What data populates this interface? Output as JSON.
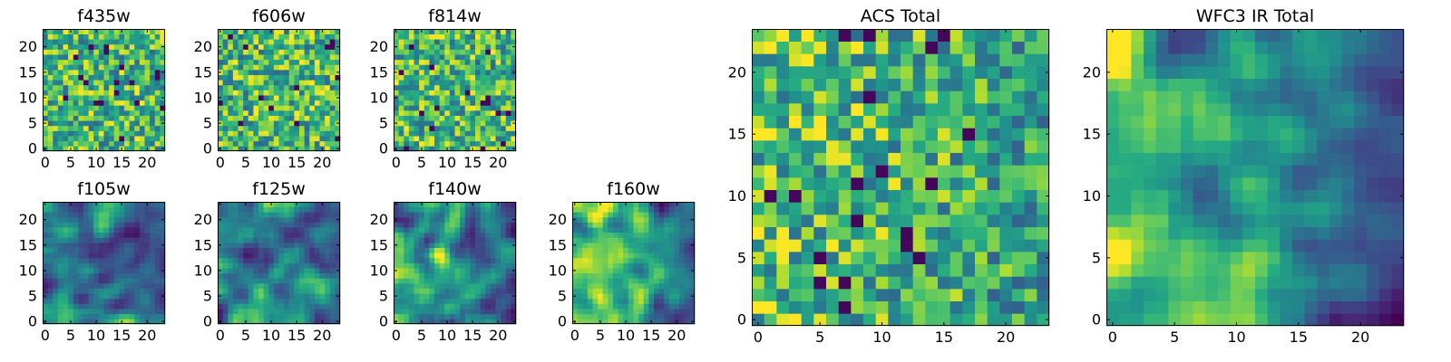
{
  "chart_data": [
    {
      "id": "f435w",
      "type": "heatmap",
      "title": "f435w",
      "rows": 24,
      "cols": 24,
      "xticks": [
        0,
        5,
        10,
        15,
        20
      ],
      "yticks": [
        0,
        5,
        10,
        15,
        20
      ],
      "xlim": [
        -0.5,
        23.5
      ],
      "ylim": [
        -0.5,
        23.5
      ],
      "texture": "noise",
      "edge_fade": 0.0,
      "colormap": "viridis",
      "grid": false
    },
    {
      "id": "f606w",
      "type": "heatmap",
      "title": "f606w",
      "rows": 24,
      "cols": 24,
      "xticks": [
        0,
        5,
        10,
        15,
        20
      ],
      "yticks": [
        0,
        5,
        10,
        15,
        20
      ],
      "xlim": [
        -0.5,
        23.5
      ],
      "ylim": [
        -0.5,
        23.5
      ],
      "texture": "noise",
      "edge_fade": 0.0,
      "colormap": "viridis",
      "grid": false
    },
    {
      "id": "f814w",
      "type": "heatmap",
      "title": "f814w",
      "rows": 24,
      "cols": 24,
      "xticks": [
        0,
        5,
        10,
        15,
        20
      ],
      "yticks": [
        0,
        5,
        10,
        15,
        20
      ],
      "xlim": [
        -0.5,
        23.5
      ],
      "ylim": [
        -0.5,
        23.5
      ],
      "texture": "noise",
      "edge_fade": 0.0,
      "colormap": "viridis",
      "grid": false
    },
    {
      "id": "f105w",
      "type": "heatmap",
      "title": "f105w",
      "rows": 24,
      "cols": 24,
      "xticks": [
        0,
        5,
        10,
        15,
        20
      ],
      "yticks": [
        0,
        5,
        10,
        15,
        20
      ],
      "xlim": [
        -0.5,
        23.5
      ],
      "ylim": [
        -0.5,
        23.5
      ],
      "texture": "smooth",
      "edge_fade": 0.35,
      "colormap": "viridis",
      "grid": false
    },
    {
      "id": "f125w",
      "type": "heatmap",
      "title": "f125w",
      "rows": 24,
      "cols": 24,
      "xticks": [
        0,
        5,
        10,
        15,
        20
      ],
      "yticks": [
        0,
        5,
        10,
        15,
        20
      ],
      "xlim": [
        -0.5,
        23.5
      ],
      "ylim": [
        -0.5,
        23.5
      ],
      "texture": "smooth",
      "edge_fade": 0.35,
      "colormap": "viridis",
      "grid": false
    },
    {
      "id": "f140w",
      "type": "heatmap",
      "title": "f140w",
      "rows": 24,
      "cols": 24,
      "xticks": [
        0,
        5,
        10,
        15,
        20
      ],
      "yticks": [
        0,
        5,
        10,
        15,
        20
      ],
      "xlim": [
        -0.5,
        23.5
      ],
      "ylim": [
        -0.5,
        23.5
      ],
      "texture": "smooth",
      "edge_fade": 0.4,
      "colormap": "viridis",
      "grid": false
    },
    {
      "id": "f160w",
      "type": "heatmap",
      "title": "f160w",
      "rows": 24,
      "cols": 24,
      "xticks": [
        0,
        5,
        10,
        15,
        20
      ],
      "yticks": [
        0,
        5,
        10,
        15,
        20
      ],
      "xlim": [
        -0.5,
        23.5
      ],
      "ylim": [
        -0.5,
        23.5
      ],
      "texture": "smooth",
      "edge_fade": 0.5,
      "colormap": "viridis",
      "grid": false
    },
    {
      "id": "acs-total",
      "type": "heatmap",
      "title": "ACS Total",
      "rows": 24,
      "cols": 24,
      "xticks": [
        0,
        5,
        10,
        15,
        20
      ],
      "yticks": [
        0,
        5,
        10,
        15,
        20
      ],
      "xlim": [
        -0.5,
        23.5
      ],
      "ylim": [
        -0.5,
        23.5
      ],
      "texture": "noise",
      "edge_fade": 0.15,
      "colormap": "viridis",
      "grid": false
    },
    {
      "id": "wfc3-total",
      "type": "heatmap",
      "title": "WFC3 IR Total",
      "rows": 24,
      "cols": 24,
      "xticks": [
        0,
        5,
        10,
        15,
        20
      ],
      "yticks": [
        0,
        5,
        10,
        15,
        20
      ],
      "xlim": [
        -0.5,
        23.5
      ],
      "ylim": [
        -0.5,
        23.5
      ],
      "texture": "smooth",
      "edge_fade": 0.55,
      "colormap": "viridis",
      "grid": false
    }
  ]
}
